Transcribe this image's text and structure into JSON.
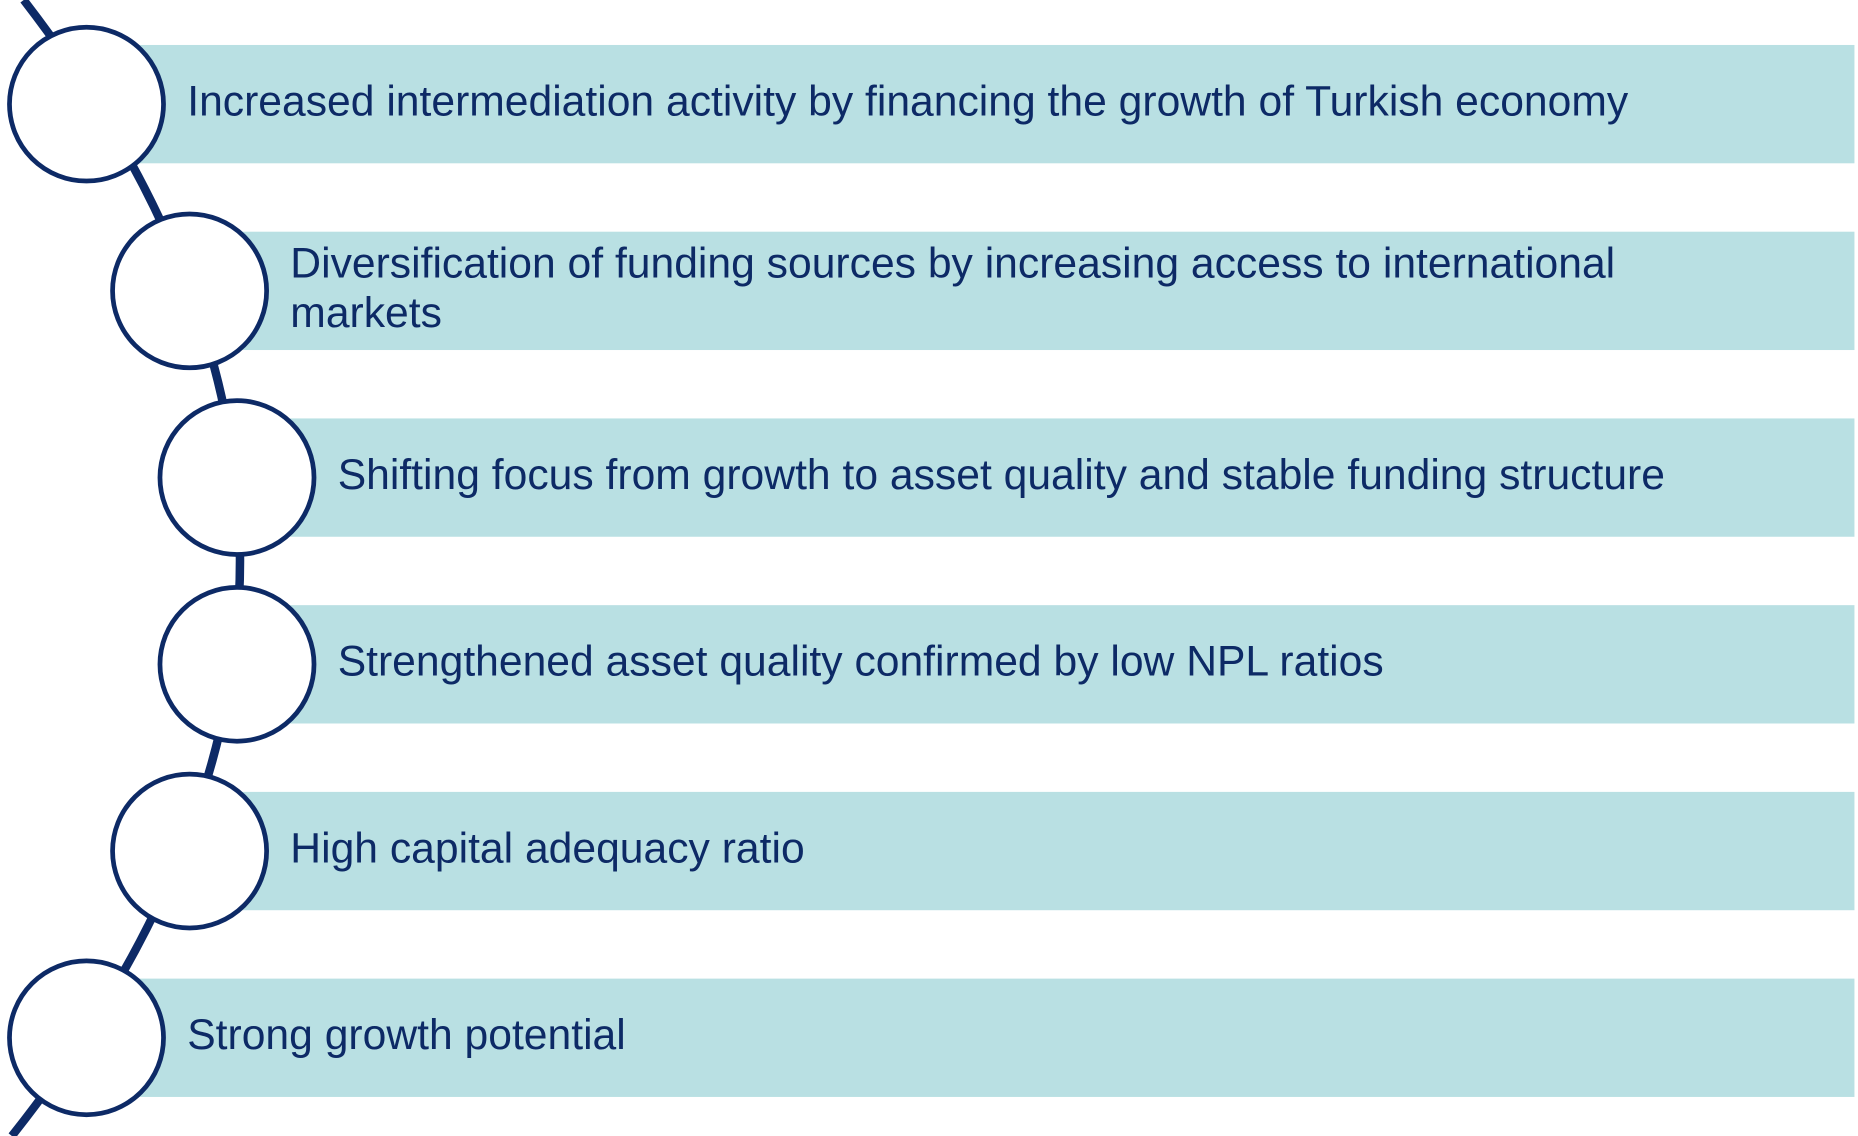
{
  "items": [
    {
      "lines": [
        "Increased intermediation activity by financing the growth of Turkish economy"
      ]
    },
    {
      "lines": [
        "Diversification of funding sources by increasing access to international",
        "markets"
      ]
    },
    {
      "lines": [
        "Shifting focus from growth to asset quality and stable funding structure"
      ]
    },
    {
      "lines": [
        "Strengthened asset quality confirmed by low NPL ratios"
      ]
    },
    {
      "lines": [
        "High capital adequacy ratio"
      ]
    },
    {
      "lines": [
        "Strong growth potential"
      ]
    }
  ]
}
